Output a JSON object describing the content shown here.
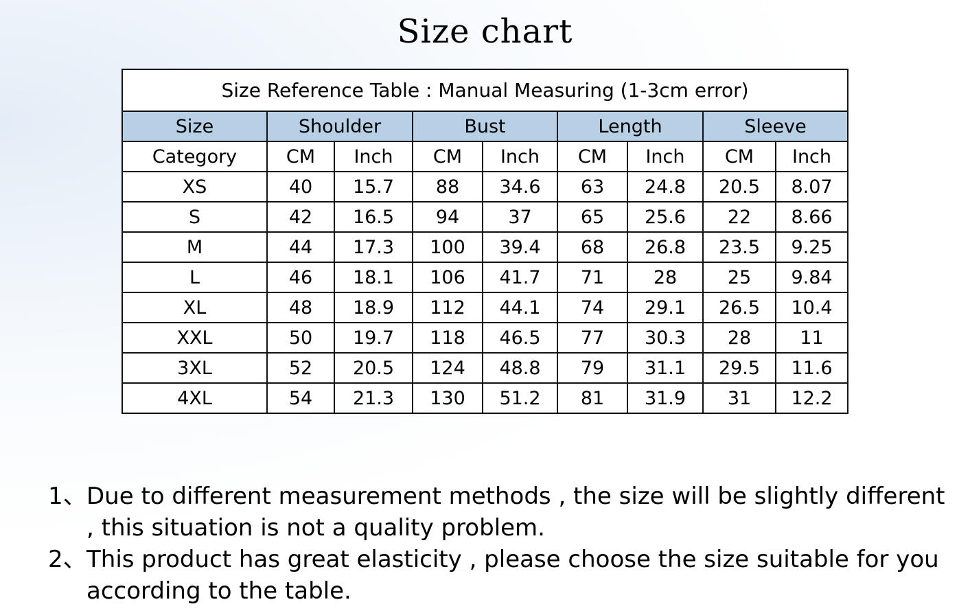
{
  "title": "Size chart",
  "table": {
    "caption": "Size Reference Table : Manual Measuring (1-3cm error)",
    "header": [
      "Size",
      "Shoulder",
      "Bust",
      "Length",
      "Sleeve"
    ],
    "subheader": [
      "Category",
      "CM",
      "Inch",
      "CM",
      "Inch",
      "CM",
      "Inch",
      "CM",
      "Inch"
    ],
    "rows": [
      [
        "XS",
        40,
        15.7,
        88,
        34.6,
        63,
        24.8,
        20.5,
        8.07
      ],
      [
        "S",
        42,
        16.5,
        94,
        37,
        65,
        25.6,
        22,
        8.66
      ],
      [
        "M",
        44,
        17.3,
        100,
        39.4,
        68,
        26.8,
        23.5,
        9.25
      ],
      [
        "L",
        46,
        18.1,
        106,
        41.7,
        71,
        28,
        25,
        9.84
      ],
      [
        "XL",
        48,
        18.9,
        112,
        44.1,
        74,
        29.1,
        26.5,
        10.4
      ],
      [
        "XXL",
        50,
        19.7,
        118,
        46.5,
        77,
        30.3,
        28,
        11
      ],
      [
        "3XL",
        52,
        20.5,
        124,
        48.8,
        79,
        31.1,
        29.5,
        11.6
      ],
      [
        "4XL",
        54,
        21.3,
        130,
        51.2,
        81,
        31.9,
        31,
        12.2
      ]
    ]
  },
  "notes": [
    {
      "marker": "1、",
      "text": "Due to different measurement methods , the size will be slightly different , this situation is not a quality problem."
    },
    {
      "marker": "2、",
      "text": "This product has great elasticity , please choose the size suitable for you according to the table."
    }
  ]
}
